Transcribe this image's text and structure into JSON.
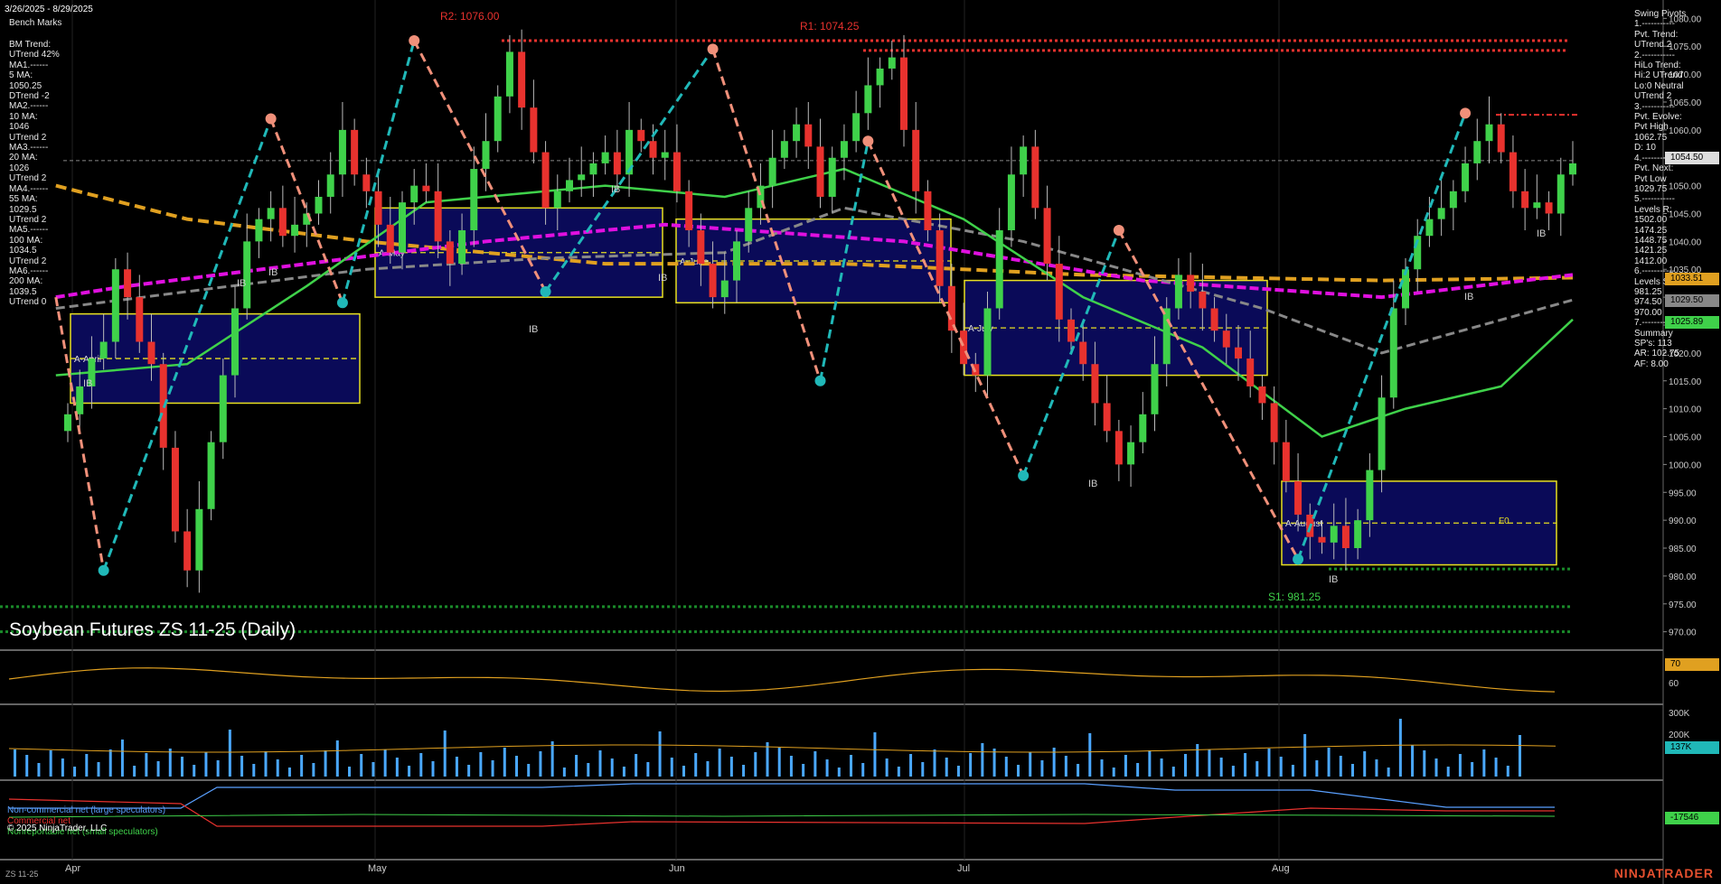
{
  "header": {
    "date_range": "3/26/2025 - 8/29/2025",
    "bench_marks": "Bench Marks"
  },
  "title": "Soybean Futures ZS 11-25 (Daily)",
  "left_panel": [
    "BM Trend:",
    "UTrend 42%",
    "MA1.------",
    "5 MA:",
    "1050.25",
    "DTrend -2",
    "MA2.------",
    "10 MA:",
    "1046",
    "UTrend 2",
    "MA3.------",
    "20 MA:",
    "1026",
    "UTrend 2",
    "MA4.------",
    "55 MA:",
    "1029.5",
    "UTrend 2",
    "MA5.------",
    "100 MA:",
    "1034.5",
    "UTrend 2",
    "MA6.------",
    "200 MA:",
    "1039.5",
    "UTrend 0"
  ],
  "right_panel": [
    "Swing Pivots",
    "1.-----------",
    "Pvt. Trend:",
    "UTrend 2",
    "2.-----------",
    "HiLo Trend:",
    "Hi:2 UTrend",
    "Lo:0 Neutral",
    "UTrend 2",
    "3.-----------",
    "Pvt. Evolve:",
    "Pvt High",
    "1062.75",
    "D: 10",
    "4.-----------",
    "Pvt. Next:",
    "Pvt Low",
    "1029.75",
    "5.-----------",
    "Levels R:",
    "1502.00",
    "1474.25",
    "1448.75",
    "1421.25",
    "1412.00",
    "6.-----------",
    "Levels S:",
    "981.25",
    "974.50",
    "970.00",
    "7.-----------",
    "Summary",
    "SP's: 113",
    "AR: 102.75",
    "AF: 8.00"
  ],
  "annotations": {
    "r2": "R2: 1076.00",
    "r1": "R1: 1074.25",
    "s1": "S1: 981.25",
    "ib": "IB",
    "f0": "F0"
  },
  "box_labels": [
    "A-April",
    "A-May",
    "A-June",
    "A-July",
    "A-August"
  ],
  "x_labels": [
    "Apr",
    "May",
    "Jun",
    "Jul",
    "Aug"
  ],
  "price_axis": [
    "1080.00",
    "1075.00",
    "1070.00",
    "1065.00",
    "1060.00",
    "1055.00",
    "1050.00",
    "1045.00",
    "1040.00",
    "1035.00",
    "1030.00",
    "1025.00",
    "1020.00",
    "1015.00",
    "1010.00",
    "1005.00",
    "1000.00",
    "995.00",
    "990.00",
    "985.00",
    "980.00",
    "975.00",
    "970.00"
  ],
  "price_tags": {
    "last": "1054.50",
    "ma_gold": "1033.51",
    "ma_gray": "1029.50",
    "ma_green": "1025.89"
  },
  "rsi_axis": [
    "70",
    "60"
  ],
  "volume_axis": [
    "300K",
    "200K",
    "137K"
  ],
  "cot_tags": [
    "-17546"
  ],
  "footer": {
    "noncommercial": "Non-commercial net (large speculators)",
    "commercial": "Commercial net",
    "small": "Nonreportable net (small speculators)",
    "copyright": "© 2025 NinjaTrader, LLC",
    "symbol": "ZS 11-25",
    "brand": "NINJATRADER"
  },
  "colors": {
    "up": "#3fd14a",
    "down": "#e8322e",
    "gold": "#e0a020",
    "magenta": "#e010e0",
    "teal": "#20b8b8",
    "salmon": "#f0907a",
    "yellow": "#e8e020",
    "navy": "#0a0a58"
  },
  "chart_data": {
    "type": "candlestick",
    "title": "Soybean Futures ZS 11-25 (Daily)",
    "ylim": [
      968,
      1082
    ],
    "closes": [
      1009,
      1014,
      1019,
      1022,
      1035,
      1030,
      1022,
      1018,
      1003,
      988,
      981,
      992,
      1004,
      1016,
      1028,
      1040,
      1044,
      1046,
      1041,
      1043,
      1045,
      1048,
      1052,
      1060,
      1052,
      1049,
      1043,
      1038,
      1047,
      1050,
      1049,
      1040,
      1036,
      1042,
      1053,
      1058,
      1066,
      1074,
      1064,
      1056,
      1046,
      1049,
      1051,
      1052,
      1054,
      1056,
      1052,
      1060,
      1058,
      1055,
      1056,
      1049,
      1042,
      1036,
      1030,
      1033,
      1040,
      1046,
      1050,
      1055,
      1058,
      1061,
      1057,
      1048,
      1055,
      1058,
      1063,
      1068,
      1071,
      1073,
      1060,
      1049,
      1042,
      1032,
      1024,
      1018,
      1016,
      1028,
      1042,
      1052,
      1057,
      1046,
      1036,
      1026,
      1022,
      1018,
      1011,
      1006,
      1000,
      1004,
      1009,
      1018,
      1028,
      1034,
      1031,
      1028,
      1024,
      1021,
      1019,
      1014,
      1011,
      1004,
      997,
      991,
      987,
      986,
      989,
      985,
      990,
      999,
      1012,
      1028,
      1035,
      1041,
      1044,
      1046,
      1049,
      1054,
      1058,
      1061,
      1056,
      1049,
      1046,
      1047,
      1045,
      1052,
      1054
    ]
  }
}
